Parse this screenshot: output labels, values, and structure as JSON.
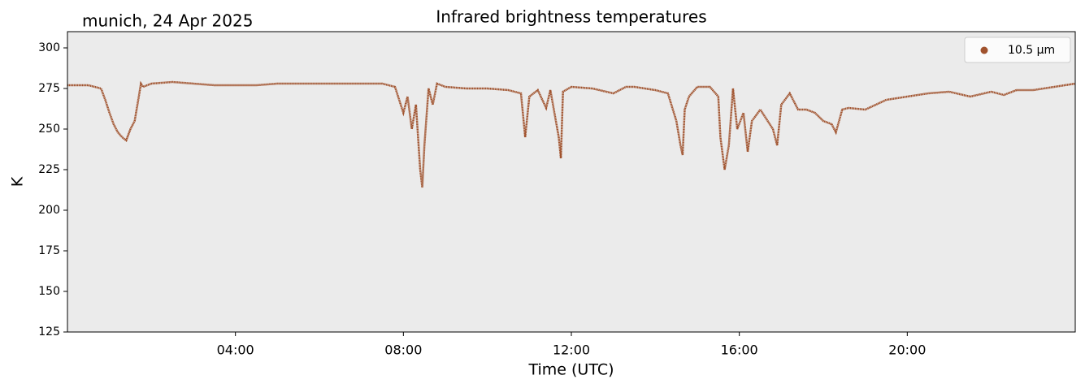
{
  "chart_data": {
    "type": "line",
    "title": "Infrared brightness temperatures",
    "subtitle": "munich, 24 Apr 2025",
    "x_label": "Time (UTC)",
    "y_label": "K",
    "xlim": [
      0,
      24
    ],
    "xticks": [
      {
        "value": 4,
        "label": "04:00"
      },
      {
        "value": 8,
        "label": "08:00"
      },
      {
        "value": 12,
        "label": "12:00"
      },
      {
        "value": 16,
        "label": "16:00"
      },
      {
        "value": 20,
        "label": "20:00"
      }
    ],
    "ylim": [
      125,
      310
    ],
    "yticks": [
      125,
      150,
      175,
      200,
      225,
      250,
      275,
      300
    ],
    "legend_position": "upper right",
    "background": "#ebebeb",
    "series": [
      {
        "name": "10.5 µm",
        "color": "#a0522d",
        "x": [
          0,
          0.5,
          0.8,
          0.9,
          1.0,
          1.1,
          1.2,
          1.3,
          1.4,
          1.5,
          1.6,
          1.7,
          1.75,
          1.8,
          2.0,
          2.5,
          3.0,
          3.5,
          4.0,
          4.5,
          5.0,
          5.5,
          6.0,
          6.5,
          7.0,
          7.5,
          7.8,
          8.0,
          8.1,
          8.2,
          8.3,
          8.4,
          8.45,
          8.5,
          8.6,
          8.7,
          8.8,
          9.0,
          9.5,
          10.0,
          10.5,
          10.8,
          10.9,
          11.0,
          11.2,
          11.4,
          11.5,
          11.7,
          11.75,
          11.8,
          12.0,
          12.5,
          13.0,
          13.3,
          13.5,
          14.0,
          14.3,
          14.5,
          14.6,
          14.65,
          14.7,
          14.8,
          15.0,
          15.3,
          15.5,
          15.55,
          15.65,
          15.75,
          15.85,
          15.95,
          16.1,
          16.2,
          16.3,
          16.5,
          16.8,
          16.9,
          17.0,
          17.2,
          17.4,
          17.6,
          17.8,
          18.0,
          18.2,
          18.3,
          18.45,
          18.6,
          19.0,
          19.5,
          20.0,
          20.5,
          21.0,
          21.5,
          22.0,
          22.3,
          22.6,
          23.0,
          23.5,
          24.0
        ],
        "values": [
          277,
          277,
          275,
          268,
          260,
          253,
          248,
          245,
          243,
          250,
          255,
          270,
          278,
          276,
          278,
          279,
          278,
          277,
          277,
          277,
          278,
          278,
          278,
          278,
          278,
          278,
          276,
          260,
          270,
          250,
          265,
          225,
          214,
          240,
          275,
          265,
          278,
          276,
          275,
          275,
          274,
          272,
          245,
          270,
          274,
          263,
          274,
          245,
          232,
          273,
          276,
          275,
          272,
          276,
          276,
          274,
          272,
          255,
          240,
          234,
          262,
          270,
          276,
          276,
          270,
          245,
          225,
          240,
          275,
          250,
          260,
          236,
          255,
          262,
          250,
          240,
          265,
          272,
          262,
          262,
          260,
          255,
          253,
          248,
          262,
          263,
          262,
          268,
          270,
          272,
          273,
          270,
          273,
          271,
          274,
          274,
          276,
          278
        ]
      }
    ]
  }
}
